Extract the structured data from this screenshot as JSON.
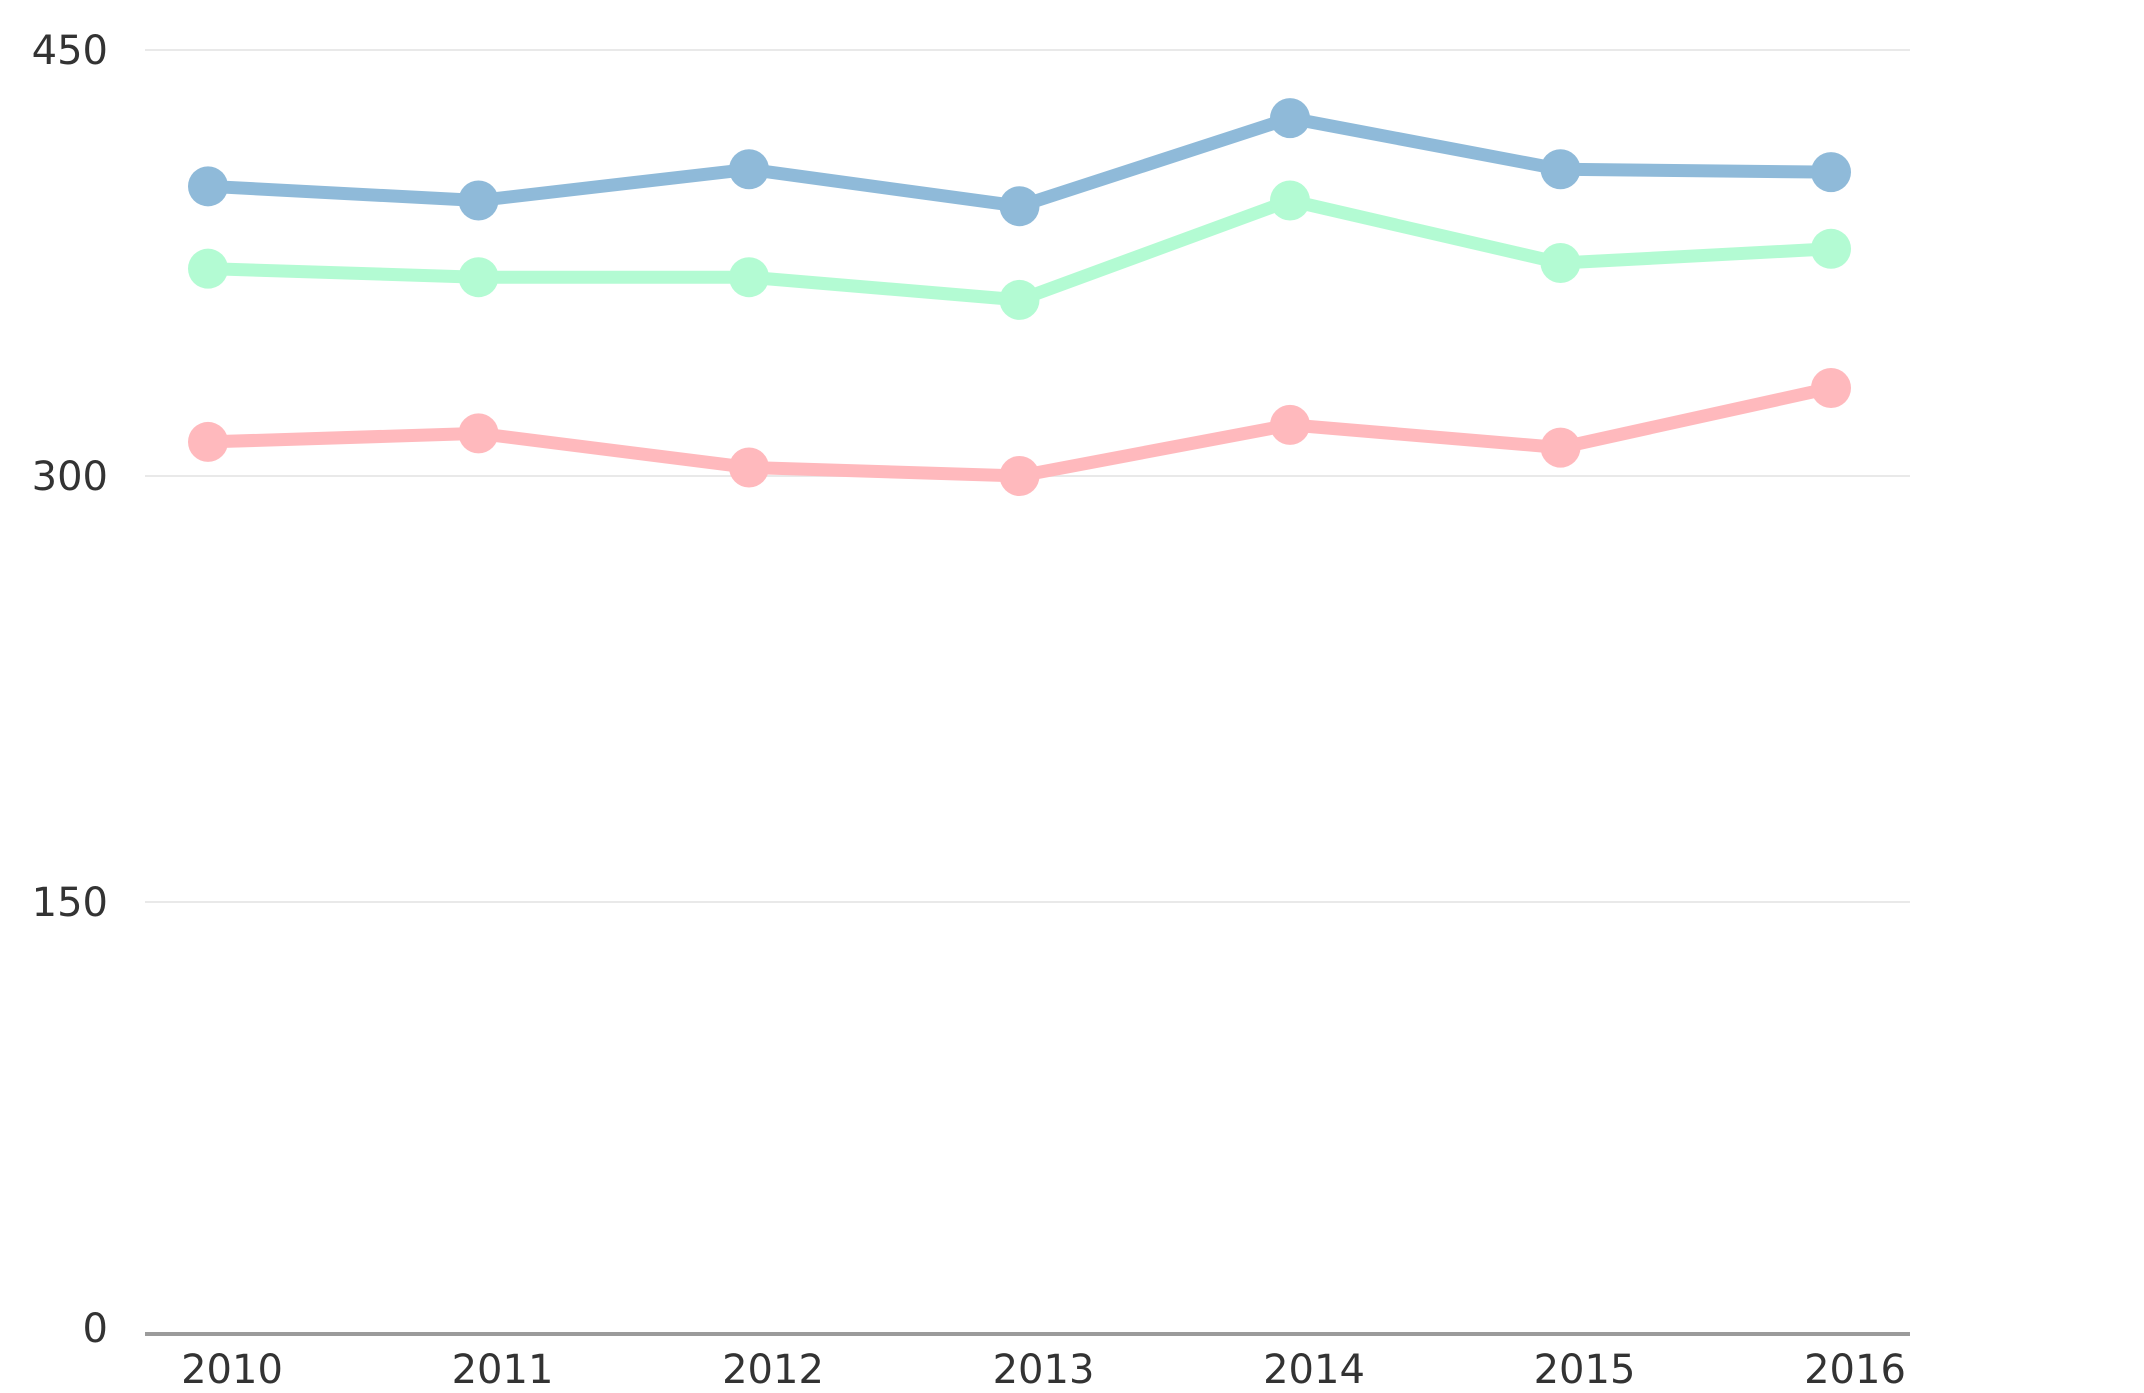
{
  "chart_data": {
    "type": "line",
    "title": "",
    "xlabel": "",
    "ylabel": "",
    "categories": [
      "2010",
      "2011",
      "2012",
      "2013",
      "2014",
      "2015",
      "2016"
    ],
    "ylim": [
      0,
      450
    ],
    "yticks": [
      "0",
      "150",
      "300",
      "450"
    ],
    "grid": true,
    "legend": "none",
    "series": [
      {
        "color": "#8fbad9",
        "values": [
          402,
          397,
          408,
          395,
          426,
          408,
          407
        ]
      },
      {
        "color": "#b3fbd3",
        "values": [
          373,
          370,
          370,
          362,
          397,
          375,
          380
        ]
      },
      {
        "color": "#ffb9bd",
        "values": [
          312,
          315,
          303,
          300,
          318,
          310,
          331
        ]
      }
    ]
  }
}
